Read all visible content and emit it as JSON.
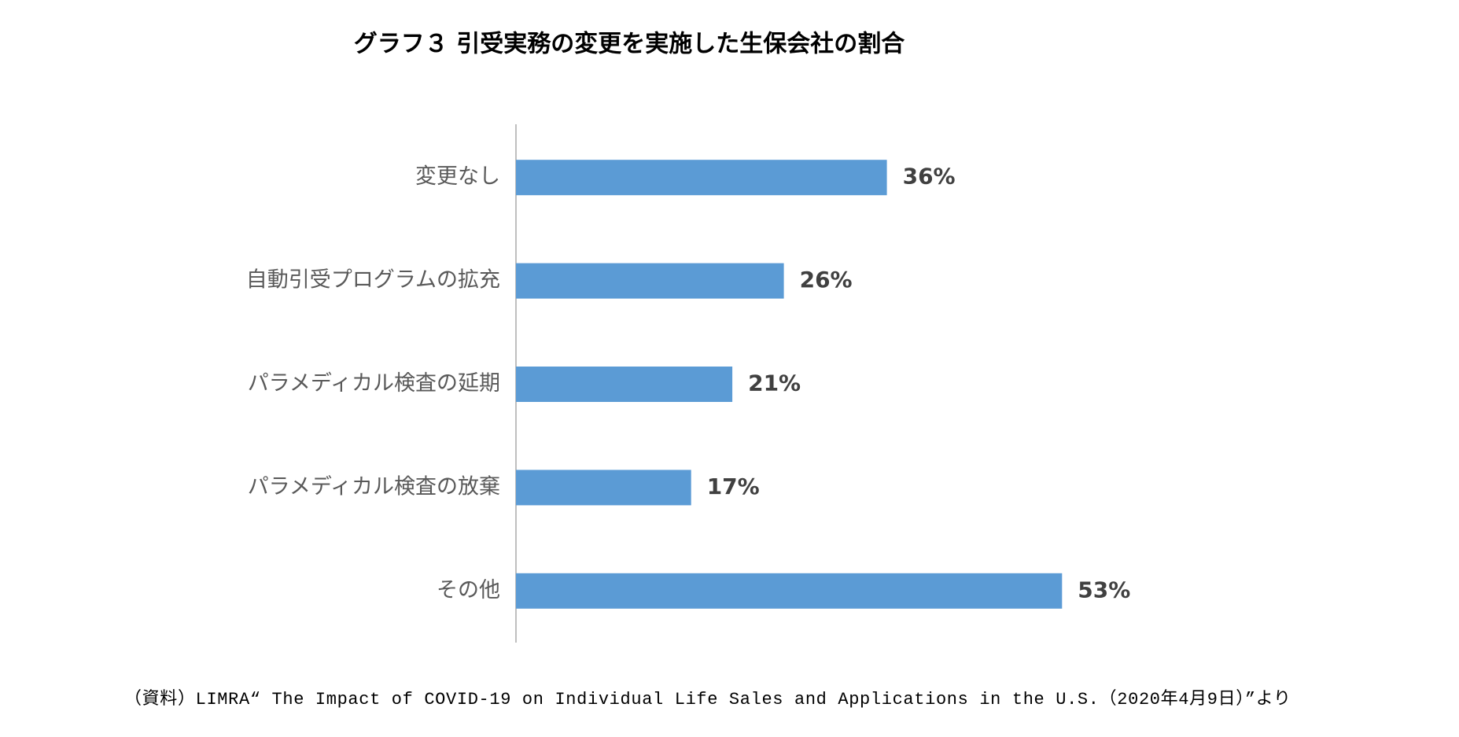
{
  "chart_data": {
    "type": "bar",
    "orientation": "horizontal",
    "title": "グラフ３ 引受実務の変更を実施した生保会社の割合",
    "categories": [
      "変更なし",
      "自動引受プログラムの拡充",
      "パラメディカル検査の延期",
      "パラメディカル検査の放棄",
      "その他"
    ],
    "values": [
      36,
      26,
      21,
      17,
      53
    ],
    "value_labels": [
      "36%",
      "26%",
      "21%",
      "17%",
      "53%"
    ],
    "color": "#5b9bd5",
    "source": "（資料）LIMRA“ The Impact of COVID-19 on Individual Life Sales and Applications in the U.S.（2020年4月9日）”より"
  }
}
